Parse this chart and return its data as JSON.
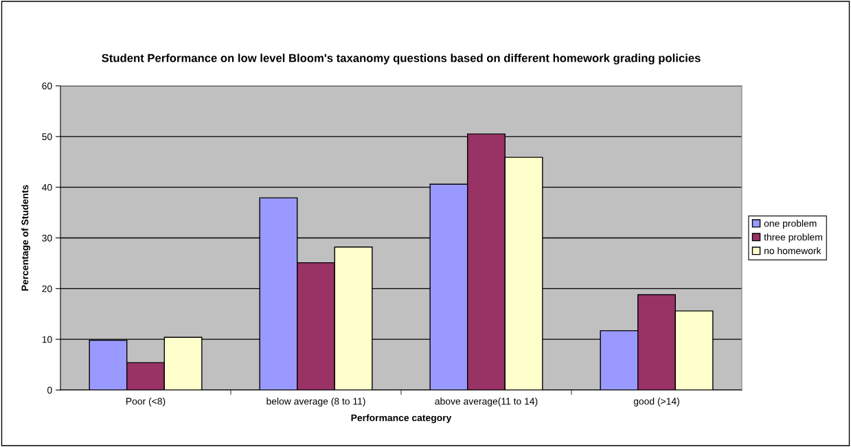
{
  "chart_data": {
    "type": "bar",
    "title": "Student Performance on low level Bloom's taxanomy questions based on different homework grading policies",
    "xlabel": "Performance category",
    "ylabel": "Percentage of Students",
    "categories": [
      "Poor (<8)",
      "below average (8 to 11)",
      "above average(11 to 14)",
      "good (>14)"
    ],
    "series": [
      {
        "name": "one problem",
        "color": "#9999ff",
        "values": [
          9.8,
          37.9,
          40.6,
          11.7
        ]
      },
      {
        "name": "three problem",
        "color": "#993366",
        "values": [
          5.4,
          25.1,
          50.5,
          18.8
        ]
      },
      {
        "name": "no homework",
        "color": "#ffffcc",
        "values": [
          10.4,
          28.2,
          45.9,
          15.6
        ]
      }
    ],
    "ylim": [
      0,
      60
    ],
    "yticks": [
      0,
      10,
      20,
      30,
      40,
      50,
      60
    ],
    "grid": "y",
    "legend": "right"
  }
}
